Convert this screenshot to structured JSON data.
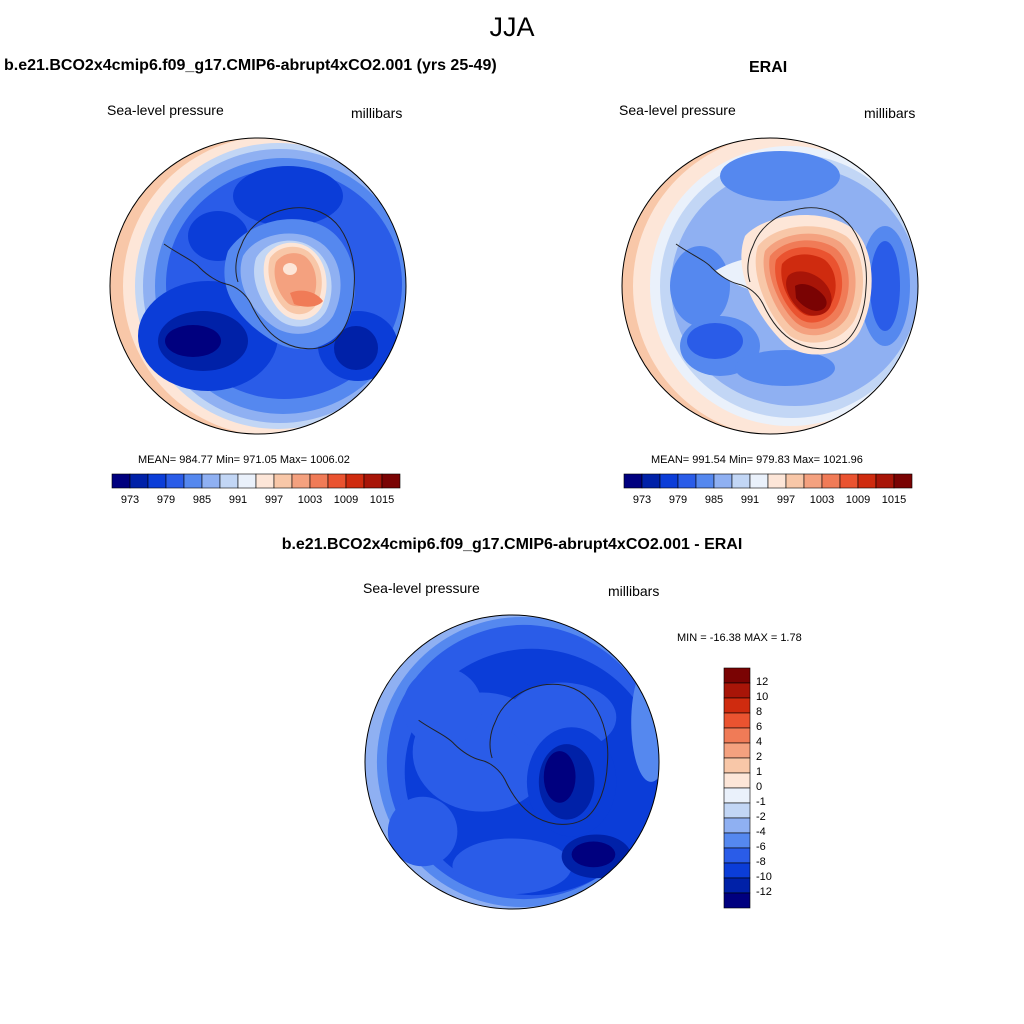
{
  "figure": {
    "title": "JJA"
  },
  "panels": [
    {
      "title": "b.e21.BCO2x4cmip6.f09_g17.CMIP6-abrupt4xCO2.001 (yrs 25-49)",
      "left_label": "Sea-level pressure",
      "right_label": "millibars",
      "stats": "MEAN= 984.77  Min= 971.05  Max= 1006.02"
    },
    {
      "title": "ERAI",
      "left_label": "Sea-level pressure",
      "right_label": "millibars",
      "stats": "MEAN= 991.54  Min= 979.83  Max= 1021.96"
    },
    {
      "title": "b.e21.BCO2x4cmip6.f09_g17.CMIP6-abrupt4xCO2.001 - ERAI",
      "left_label": "Sea-level pressure",
      "right_label": "millibars",
      "stats": "MIN = -16.38 MAX =   1.78"
    }
  ],
  "colorbar_top": {
    "colors": [
      "#00007f",
      "#0021a8",
      "#0b3dd8",
      "#2a5ce8",
      "#5588ef",
      "#8fb0f2",
      "#c2d6f5",
      "#eaf1fb",
      "#fde6d8",
      "#f8c7a8",
      "#f4a17f",
      "#f07b57",
      "#ea5330",
      "#cf2b0f",
      "#a81508",
      "#7a0303"
    ],
    "tick_labels": [
      "973",
      "979",
      "985",
      "991",
      "997",
      "1003",
      "1009",
      "1015"
    ]
  },
  "colorbar_diff": {
    "colors_top_to_bottom": [
      "#7a0303",
      "#a81508",
      "#cf2b0f",
      "#ea5330",
      "#f07b57",
      "#f4a17f",
      "#f8c7a8",
      "#fde6d8",
      "#eaf1fb",
      "#c2d6f5",
      "#8fb0f2",
      "#5588ef",
      "#2a5ce8",
      "#0b3dd8",
      "#0021a8",
      "#00007f"
    ],
    "tick_labels": [
      "12",
      "10",
      "8",
      "6",
      "4",
      "2",
      "1",
      "0",
      "-1",
      "-2",
      "-4",
      "-6",
      "-8",
      "-10",
      "-12"
    ]
  }
}
